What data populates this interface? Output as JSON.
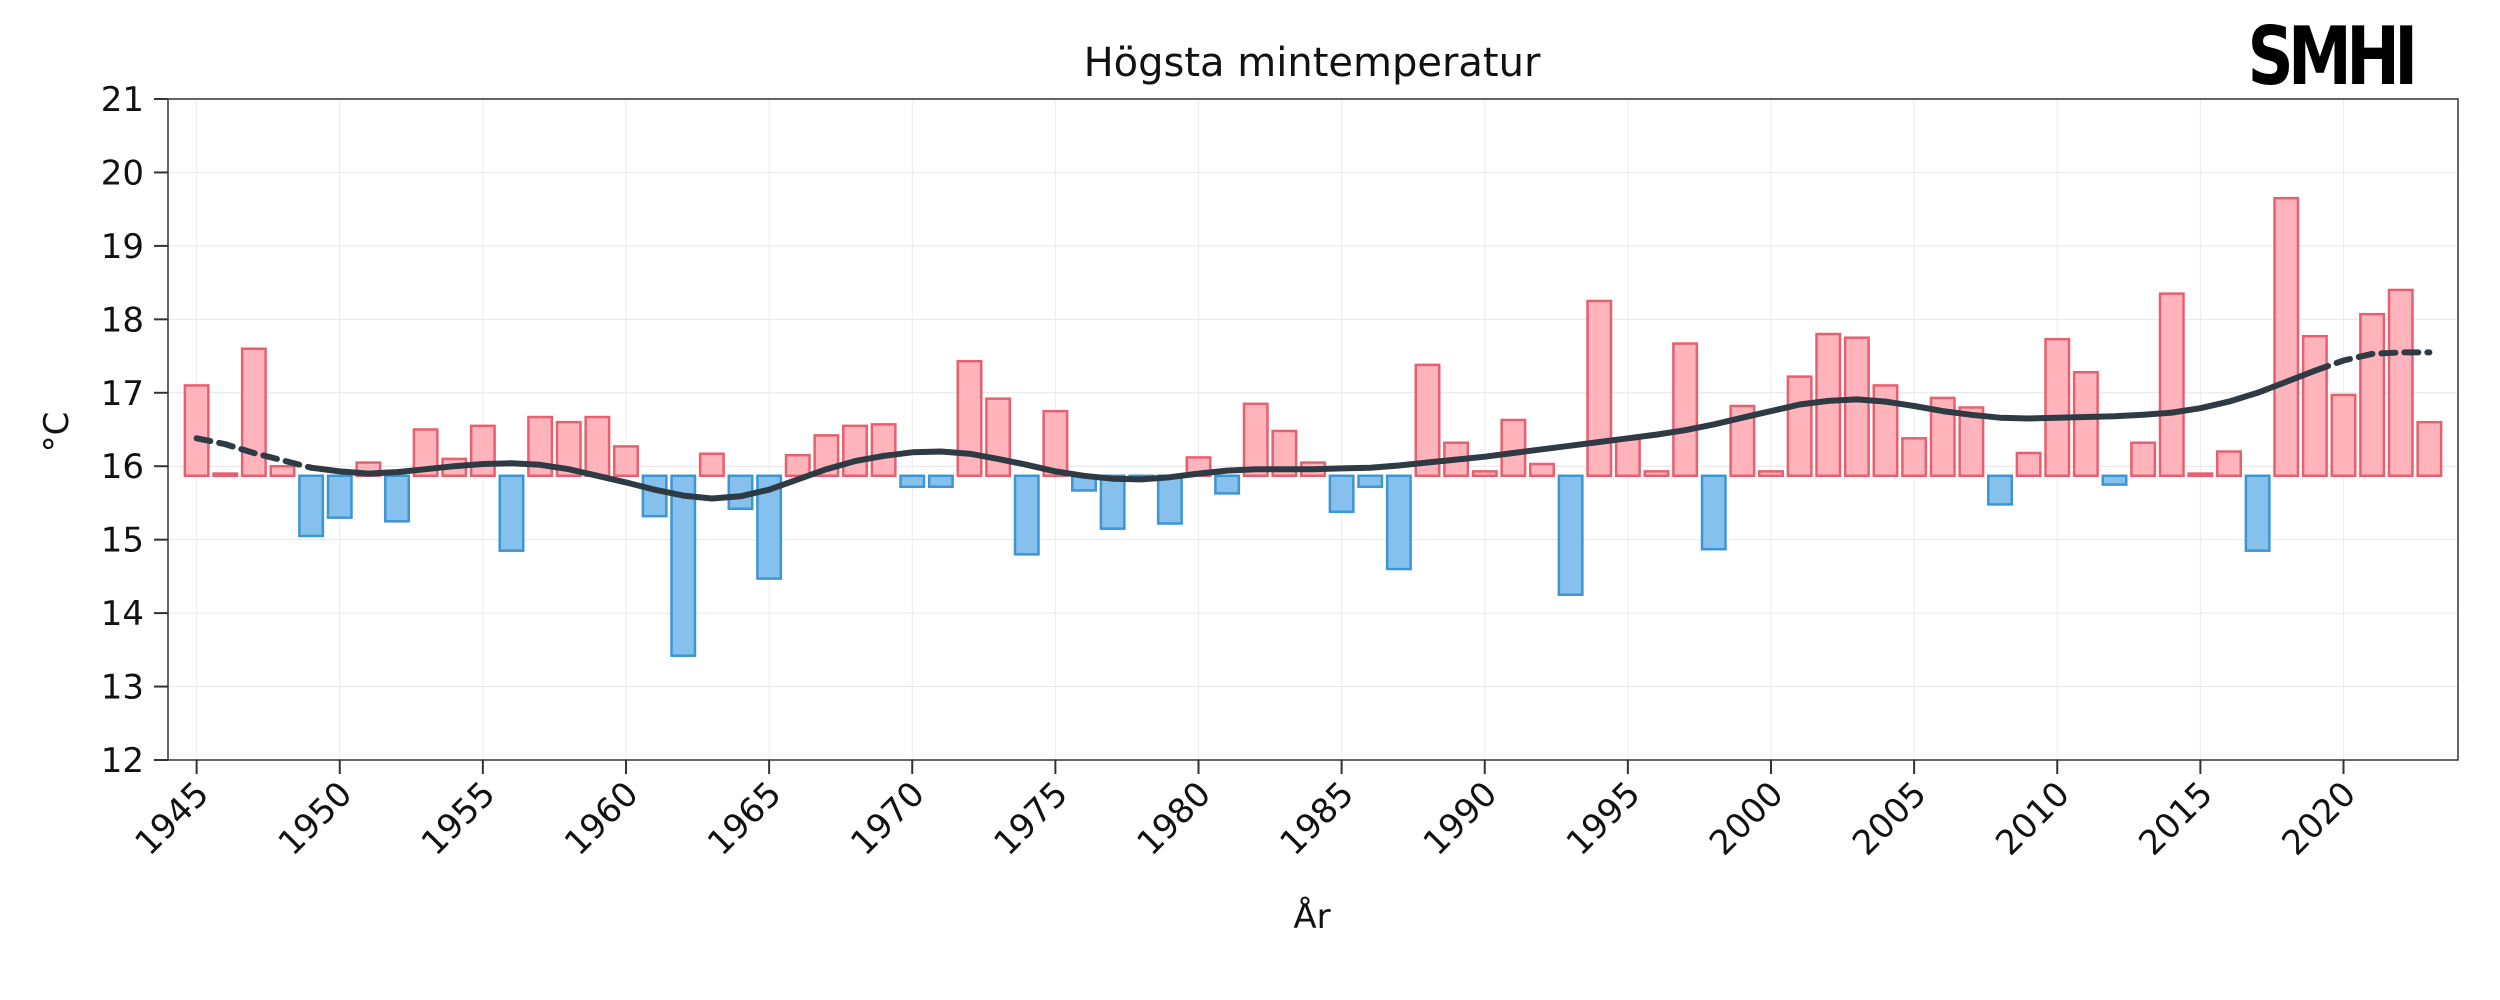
{
  "chart_data": {
    "type": "bar",
    "title": "Högsta mintemperatur",
    "xlabel": "År",
    "ylabel": "°C",
    "logo": "SMHI",
    "ylim": [
      12,
      21
    ],
    "yticks": [
      12,
      13,
      14,
      15,
      16,
      17,
      18,
      19,
      20,
      21
    ],
    "xlim": [
      1944,
      2024
    ],
    "xticks": [
      1945,
      1950,
      1955,
      1960,
      1965,
      1970,
      1975,
      1980,
      1985,
      1990,
      1995,
      2000,
      2005,
      2010,
      2015,
      2020
    ],
    "baseline": 15.87,
    "grid": true,
    "colors": {
      "above_fill": "#ffb3bb",
      "above_edge": "#e8606f",
      "below_fill": "#85c1ec",
      "below_edge": "#3d95d3",
      "trend": "#2f3b44"
    },
    "x": [
      1945,
      1946,
      1947,
      1948,
      1949,
      1950,
      1951,
      1952,
      1953,
      1954,
      1955,
      1956,
      1957,
      1958,
      1959,
      1960,
      1961,
      1962,
      1963,
      1964,
      1965,
      1966,
      1967,
      1968,
      1969,
      1970,
      1971,
      1972,
      1973,
      1974,
      1975,
      1976,
      1977,
      1978,
      1979,
      1980,
      1981,
      1982,
      1983,
      1984,
      1985,
      1986,
      1987,
      1988,
      1989,
      1990,
      1991,
      1992,
      1993,
      1994,
      1995,
      1996,
      1997,
      1998,
      1999,
      2000,
      2001,
      2002,
      2003,
      2004,
      2005,
      2006,
      2007,
      2008,
      2009,
      2010,
      2011,
      2012,
      2013,
      2014,
      2015,
      2016,
      2017,
      2018,
      2019,
      2020,
      2021,
      2022,
      2023
    ],
    "values": [
      17.1,
      15.9,
      17.6,
      16.0,
      15.05,
      15.3,
      16.05,
      15.25,
      16.5,
      16.1,
      16.55,
      14.85,
      16.67,
      16.6,
      16.67,
      16.27,
      15.32,
      13.42,
      16.17,
      15.42,
      14.47,
      16.15,
      16.42,
      16.55,
      16.57,
      15.72,
      15.72,
      17.43,
      16.92,
      14.8,
      16.75,
      15.67,
      15.15,
      15.82,
      15.22,
      16.12,
      15.63,
      16.85,
      16.48,
      16.05,
      15.38,
      15.72,
      14.6,
      17.38,
      16.32,
      15.93,
      16.63,
      16.03,
      14.25,
      18.25,
      16.37,
      15.93,
      17.67,
      14.87,
      16.82,
      15.93,
      17.22,
      17.8,
      17.75,
      17.1,
      16.38,
      16.93,
      16.8,
      15.48,
      16.18,
      17.73,
      17.28,
      15.75,
      16.32,
      18.35,
      15.9,
      16.2,
      14.85,
      19.65,
      17.77,
      16.97,
      18.07,
      18.4,
      16.6
    ],
    "trend": {
      "x": [
        1945,
        1946,
        1947,
        1948,
        1949,
        1950,
        1951,
        1952,
        1953,
        1954,
        1955,
        1956,
        1957,
        1958,
        1959,
        1960,
        1961,
        1962,
        1963,
        1964,
        1965,
        1966,
        1967,
        1968,
        1969,
        1970,
        1971,
        1972,
        1973,
        1974,
        1975,
        1976,
        1977,
        1978,
        1979,
        1980,
        1981,
        1982,
        1983,
        1984,
        1985,
        1986,
        1987,
        1988,
        1989,
        1990,
        1991,
        1992,
        1993,
        1994,
        1995,
        1996,
        1997,
        1998,
        1999,
        2000,
        2001,
        2002,
        2003,
        2004,
        2005,
        2006,
        2007,
        2008,
        2009,
        2010,
        2011,
        2012,
        2013,
        2014,
        2015,
        2016,
        2017,
        2018,
        2019,
        2020,
        2021,
        2022,
        2023
      ],
      "values": [
        16.38,
        16.3,
        16.18,
        16.08,
        15.98,
        15.93,
        15.9,
        15.92,
        15.96,
        16.0,
        16.03,
        16.04,
        16.02,
        15.96,
        15.87,
        15.78,
        15.68,
        15.6,
        15.56,
        15.59,
        15.68,
        15.82,
        15.96,
        16.07,
        16.14,
        16.19,
        16.2,
        16.17,
        16.1,
        16.02,
        15.93,
        15.87,
        15.83,
        15.82,
        15.85,
        15.9,
        15.94,
        15.96,
        15.96,
        15.96,
        15.97,
        15.98,
        16.01,
        16.05,
        16.09,
        16.13,
        16.18,
        16.23,
        16.28,
        16.33,
        16.38,
        16.43,
        16.49,
        16.57,
        16.66,
        16.75,
        16.84,
        16.89,
        16.91,
        16.88,
        16.82,
        16.75,
        16.7,
        16.66,
        16.65,
        16.66,
        16.67,
        16.68,
        16.7,
        16.73,
        16.79,
        16.88,
        17.0,
        17.15,
        17.3,
        17.44,
        17.53,
        17.55,
        17.55
      ],
      "solid_from": 1949,
      "solid_to": 2019
    }
  }
}
